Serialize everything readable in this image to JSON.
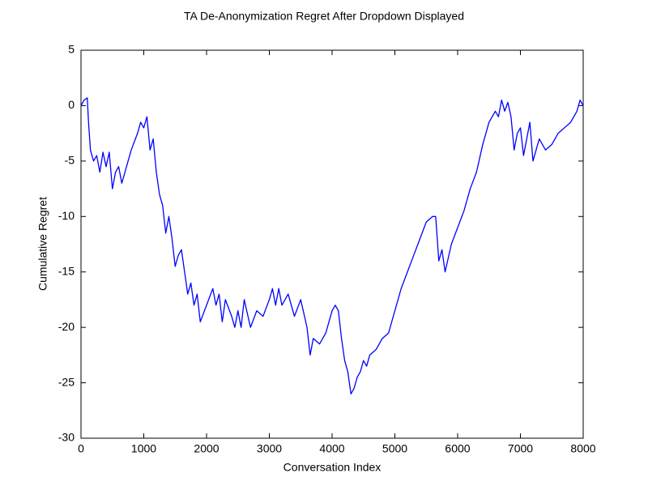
{
  "chart_data": {
    "type": "line",
    "title": "TA De-Anonymization Regret After Dropdown Displayed",
    "xlabel": "Conversation Index",
    "ylabel": "Cumulative Regret",
    "color": "#0000ff",
    "xlim": [
      0,
      8000
    ],
    "xticks": [
      0,
      1000,
      2000,
      3000,
      4000,
      5000,
      6000,
      7000,
      8000
    ],
    "ylim": [
      -30,
      5
    ],
    "yticks": [
      -30,
      -25,
      -20,
      -15,
      -10,
      -5,
      0,
      5
    ],
    "grid": false,
    "x": [
      0,
      50,
      100,
      120,
      150,
      200,
      250,
      300,
      350,
      400,
      450,
      500,
      550,
      600,
      650,
      700,
      800,
      900,
      950,
      1000,
      1050,
      1100,
      1150,
      1200,
      1250,
      1300,
      1350,
      1400,
      1450,
      1500,
      1550,
      1600,
      1650,
      1700,
      1750,
      1800,
      1850,
      1900,
      2000,
      2100,
      2150,
      2200,
      2250,
      2300,
      2400,
      2450,
      2500,
      2550,
      2600,
      2700,
      2800,
      2900,
      3000,
      3050,
      3100,
      3150,
      3200,
      3300,
      3400,
      3500,
      3600,
      3650,
      3700,
      3800,
      3900,
      4000,
      4050,
      4100,
      4150,
      4200,
      4250,
      4300,
      4350,
      4400,
      4450,
      4500,
      4550,
      4600,
      4700,
      4800,
      4900,
      5000,
      5100,
      5200,
      5300,
      5400,
      5500,
      5600,
      5650,
      5700,
      5750,
      5800,
      5900,
      6000,
      6100,
      6200,
      6300,
      6400,
      6500,
      6550,
      6600,
      6650,
      6700,
      6750,
      6800,
      6850,
      6900,
      6950,
      7000,
      7050,
      7100,
      7150,
      7200,
      7250,
      7300,
      7400,
      7500,
      7600,
      7700,
      7800,
      7900,
      7950,
      8000
    ],
    "values": [
      0,
      0.5,
      0.7,
      -1.5,
      -4,
      -5,
      -4.5,
      -6,
      -4.2,
      -5.5,
      -4.2,
      -7.5,
      -6,
      -5.5,
      -7,
      -6,
      -4,
      -2.5,
      -1.5,
      -2,
      -1,
      -4,
      -3,
      -6,
      -8,
      -9,
      -11.5,
      -10,
      -12,
      -14.5,
      -13.5,
      -13,
      -15,
      -17,
      -16,
      -18,
      -17,
      -19.5,
      -18,
      -16.5,
      -18,
      -17,
      -19.5,
      -17.5,
      -19,
      -20,
      -18.5,
      -20,
      -17.5,
      -20,
      -18.5,
      -19,
      -17.5,
      -16.5,
      -18,
      -16.5,
      -18,
      -17,
      -19,
      -17.5,
      -20,
      -22.5,
      -21,
      -21.5,
      -20.5,
      -18.5,
      -18,
      -18.5,
      -21,
      -23,
      -24,
      -26,
      -25.5,
      -24.5,
      -24,
      -23,
      -23.5,
      -22.5,
      -22,
      -21,
      -20.5,
      -18.5,
      -16.5,
      -15,
      -13.5,
      -12,
      -10.5,
      -10,
      -10,
      -14,
      -13,
      -15,
      -12.5,
      -11,
      -9.5,
      -7.5,
      -6,
      -3.5,
      -1.5,
      -1,
      -0.5,
      -1,
      0.5,
      -0.5,
      0.3,
      -1,
      -4,
      -2.5,
      -2,
      -4.5,
      -3,
      -1.5,
      -5,
      -4,
      -3,
      -4,
      -3.5,
      -2.5,
      -2,
      -1.5,
      -0.5,
      0.5,
      0
    ]
  }
}
